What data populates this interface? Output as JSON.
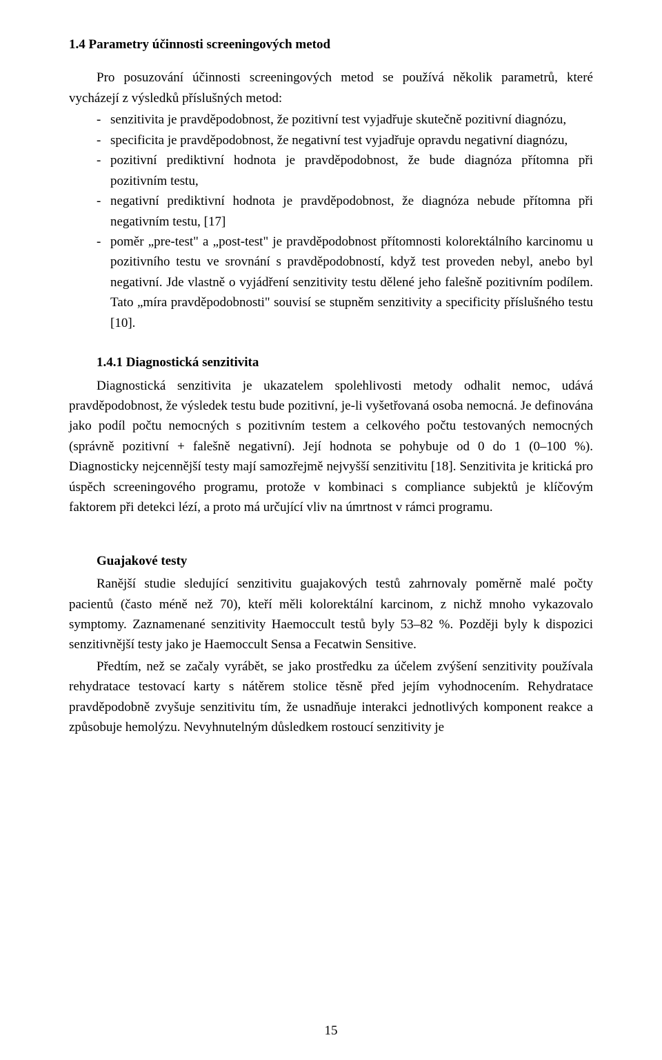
{
  "section": {
    "number": "1.4",
    "title": "Parametry účinnosti screeningových metod",
    "intro": "Pro posuzování účinnosti screeningových metod se používá několik parametrů, které vycházejí z výsledků příslušných metod:",
    "bullets": [
      "senzitivita je pravděpodobnost, že pozitivní test vyjadřuje skutečně pozitivní diagnózu,",
      "specificita je pravděpodobnost, že negativní test vyjadřuje opravdu negativní diagnózu,",
      "pozitivní prediktivní hodnota je pravděpodobnost, že bude diagnóza přítomna při pozitivním testu,",
      "negativní prediktivní hodnota je pravděpodobnost, že diagnóza nebude přítomna při negativním testu, [17]",
      "poměr „pre-test\" a „post-test\" je pravděpodobnost přítomnosti kolorektálního karcinomu u pozitivního testu ve srovnání s pravděpodobností, když test proveden nebyl, anebo byl negativní. Jde vlastně o vyjádření senzitivity testu dělené jeho falešně pozitivním podílem. Tato „míra pravděpodobnosti\" souvisí se stupněm senzitivity a specificity příslušného testu [10]."
    ]
  },
  "subsection": {
    "number": "1.4.1",
    "title": "Diagnostická senzitivita",
    "para": "Diagnostická senzitivita je ukazatelem spolehlivosti metody odhalit nemoc, udává pravděpodobnost, že výsledek testu bude pozitivní, je-li vyšetřovaná osoba nemocná. Je definována jako podíl počtu nemocných s pozitivním testem a celkového počtu testovaných nemocných (správně pozitivní + falešně negativní). Její hodnota se pohybuje od 0 do 1 (0–100 %). Diagnosticky nejcennější testy mají samozřejmě nejvyšší senzitivitu [18]. Senzitivita je kritická pro úspěch screeningového programu, protože v kombinaci s compliance subjektů je klíčovým faktorem při detekci lézí, a proto má určující vliv na úmrtnost v rámci programu."
  },
  "guajak": {
    "title": "Guajakové testy",
    "para1": "Ranější studie sledující senzitivitu guajakových testů zahrnovaly poměrně malé počty pacientů (často méně než 70), kteří měli kolorektální karcinom, z nichž mnoho vykazovalo symptomy. Zaznamenané senzitivity Haemoccult testů byly 53–82 %. Později byly k dispozici senzitivnější testy jako je Haemoccult Sensa a Fecatwin Sensitive.",
    "para2": "Předtím, než se začaly vyrábět, se jako prostředku za účelem zvýšení senzitivity používala rehydratace testovací karty s nátěrem stolice těsně před jejím vyhodnocením. Rehydratace pravděpodobně zvyšuje senzitivitu tím, že usnadňuje interakci jednotlivých komponent reakce a způsobuje hemolýzu. Nevyhnutelným důsledkem rostoucí senzitivity je"
  },
  "page_number": "15"
}
